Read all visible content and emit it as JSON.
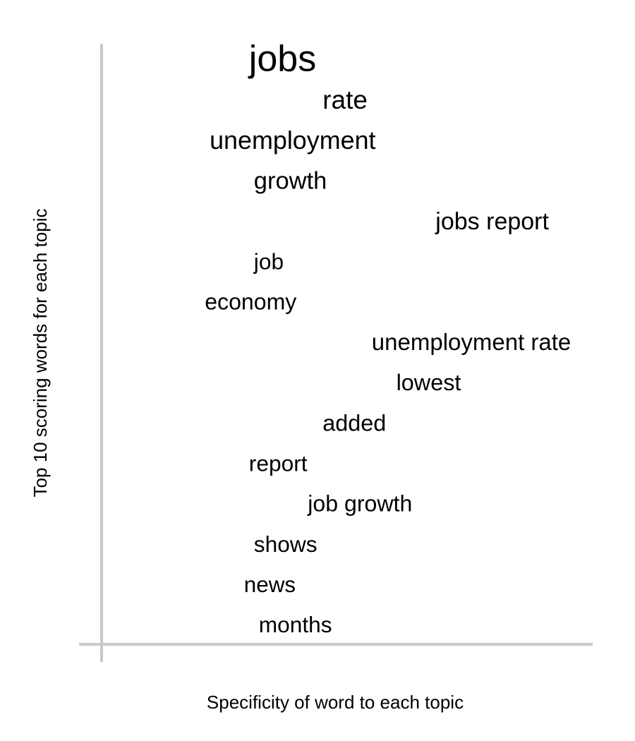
{
  "chart_data": {
    "type": "scatter",
    "title": "",
    "xlabel": "Specificity of word to each topic",
    "ylabel": "Top 10 scoring words for each topic",
    "grid": false,
    "words": [
      {
        "text": "jobs",
        "specificity": 0.3,
        "score": 1.0
      },
      {
        "text": "rate",
        "specificity": 0.45,
        "score": 0.62
      },
      {
        "text": "unemployment",
        "specificity": 0.22,
        "score": 0.58
      },
      {
        "text": "growth",
        "specificity": 0.31,
        "score": 0.52
      },
      {
        "text": "jobs report",
        "specificity": 0.68,
        "score": 0.5
      },
      {
        "text": "job",
        "specificity": 0.31,
        "score": 0.38
      },
      {
        "text": "economy",
        "specificity": 0.21,
        "score": 0.4
      },
      {
        "text": "unemployment rate",
        "specificity": 0.55,
        "score": 0.45
      },
      {
        "text": "lowest",
        "specificity": 0.6,
        "score": 0.42
      },
      {
        "text": "added",
        "specificity": 0.45,
        "score": 0.42
      },
      {
        "text": "report",
        "specificity": 0.3,
        "score": 0.38
      },
      {
        "text": "job growth",
        "specificity": 0.42,
        "score": 0.4
      },
      {
        "text": "shows",
        "specificity": 0.31,
        "score": 0.38
      },
      {
        "text": "news",
        "specificity": 0.29,
        "score": 0.36
      },
      {
        "text": "months",
        "specificity": 0.32,
        "score": 0.38
      }
    ]
  }
}
